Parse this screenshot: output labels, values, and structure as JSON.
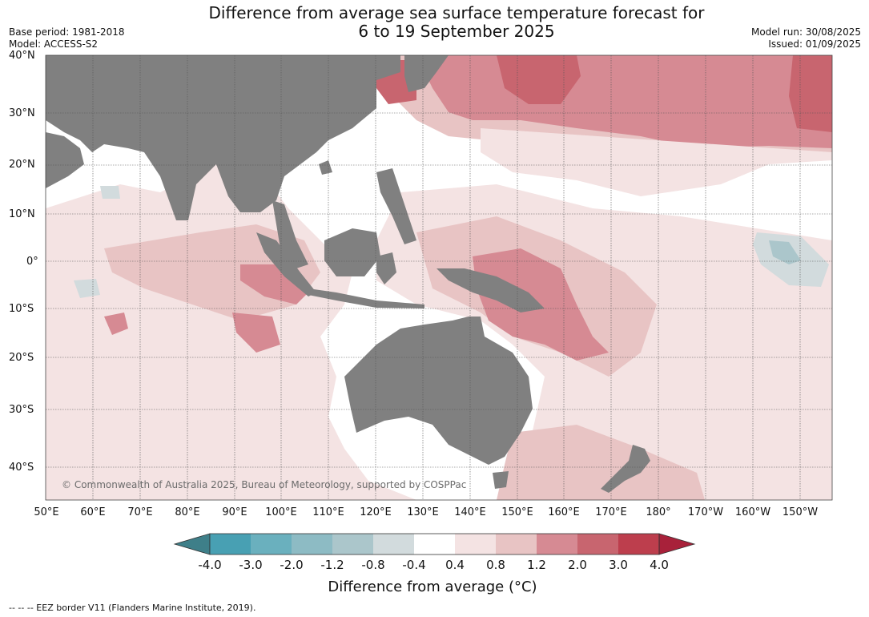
{
  "title": {
    "line1": "Difference from average sea surface temperature forecast for",
    "line2": "6 to 19 September 2025"
  },
  "meta": {
    "base_period": "Base period: 1981-2018",
    "model": "Model: ACCESS-S2",
    "model_run": "Model run: 30/08/2025",
    "issued": "Issued: 01/09/2025"
  },
  "map": {
    "lat_labels": [
      "40°N",
      "30°N",
      "20°N",
      "10°N",
      "0°",
      "10°S",
      "20°S",
      "30°S",
      "40°S"
    ],
    "lon_labels": [
      "50°E",
      "60°E",
      "70°E",
      "80°E",
      "90°E",
      "100°E",
      "110°E",
      "120°E",
      "130°E",
      "140°E",
      "150°E",
      "160°E",
      "170°E",
      "180°",
      "170°W",
      "160°W",
      "150°W"
    ],
    "copyright": "© Commonwealth of Australia 2025, Bureau of Meteorology, supported by COSPPac",
    "land_color": "#808080"
  },
  "colorbar": {
    "title": "Difference from average (°C)",
    "ticks": [
      "-4.0",
      "-3.0",
      "-2.0",
      "-1.2",
      "-0.8",
      "-0.4",
      "0.4",
      "0.8",
      "1.2",
      "2.0",
      "3.0",
      "4.0"
    ],
    "colors": [
      "#3e7f89",
      "#48a0b3",
      "#6ab0be",
      "#8dbbc4",
      "#abc6cb",
      "#d2dbdd",
      "#ffffff",
      "#f4e3e3",
      "#e8c4c4",
      "#d68a93",
      "#c8656f",
      "#bd3e4d",
      "#a8213a"
    ]
  },
  "footer": "--  --  -- EEZ border V11 (Flanders Marine Institute, 2019)."
}
